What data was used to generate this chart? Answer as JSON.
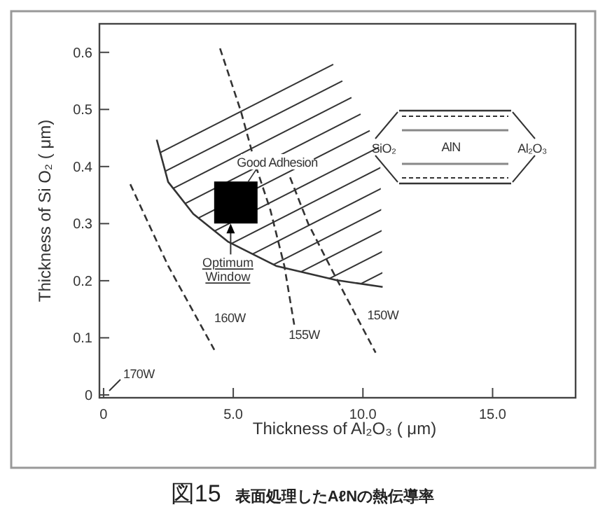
{
  "chart_data": {
    "type": "line",
    "title": "図15 表面処理したAℓNの熱伝導率",
    "xlabel": "Thickness of Al₂O₃ ( μm)",
    "ylabel": "Thickness of Si O₂ ( μm)",
    "xlim": [
      -0.16,
      18.2
    ],
    "ylim": [
      -0.005,
      0.65
    ],
    "xticks": [
      0,
      {
        "value": 5,
        "label": "5.0"
      },
      {
        "value": 10,
        "label": "10.0"
      },
      {
        "value": 15,
        "label": "15.0"
      }
    ],
    "yticks": [
      0,
      0.1,
      0.2,
      0.3,
      0.4,
      0.5,
      0.6
    ],
    "grid": false,
    "series": [
      {
        "color": "#333333",
        "line_style": "solid",
        "x": [
          2.05,
          2.49,
          3.46,
          4.81,
          6.65,
          8.97,
          10.76
        ],
        "values": [
          0.447,
          0.373,
          0.317,
          0.268,
          0.226,
          0.201,
          0.189
        ]
      },
      {
        "name": "160W",
        "color": "#333333",
        "line_style": "dashed",
        "x": [
          1.03,
          2.49,
          4.27
        ],
        "values": [
          0.369,
          0.226,
          0.079
        ]
      },
      {
        "name": "155W",
        "color": "#333333",
        "line_style": "dashed",
        "x": [
          4.49,
          5.3,
          5.89,
          6.43,
          6.97,
          7.35
        ],
        "values": [
          0.607,
          0.496,
          0.398,
          0.324,
          0.226,
          0.123
        ]
      },
      {
        "name": "150W",
        "color": "#333333",
        "line_style": "dashed",
        "x": [
          7.19,
          7.89,
          8.86,
          10.49
        ],
        "values": [
          0.381,
          0.3,
          0.214,
          0.074
        ]
      },
      {
        "type": "scatter",
        "marker": "square",
        "color": "#000000",
        "x": [
          5.1
        ],
        "values": [
          0.337
        ]
      }
    ],
    "annotations": [
      "Good Adhesion",
      {
        "text": "Optimum\nWindow",
        "x": 4.9,
        "y": 0.3
      },
      "170W",
      "SiO₂",
      "AlN",
      "Al₂O₃"
    ]
  }
}
